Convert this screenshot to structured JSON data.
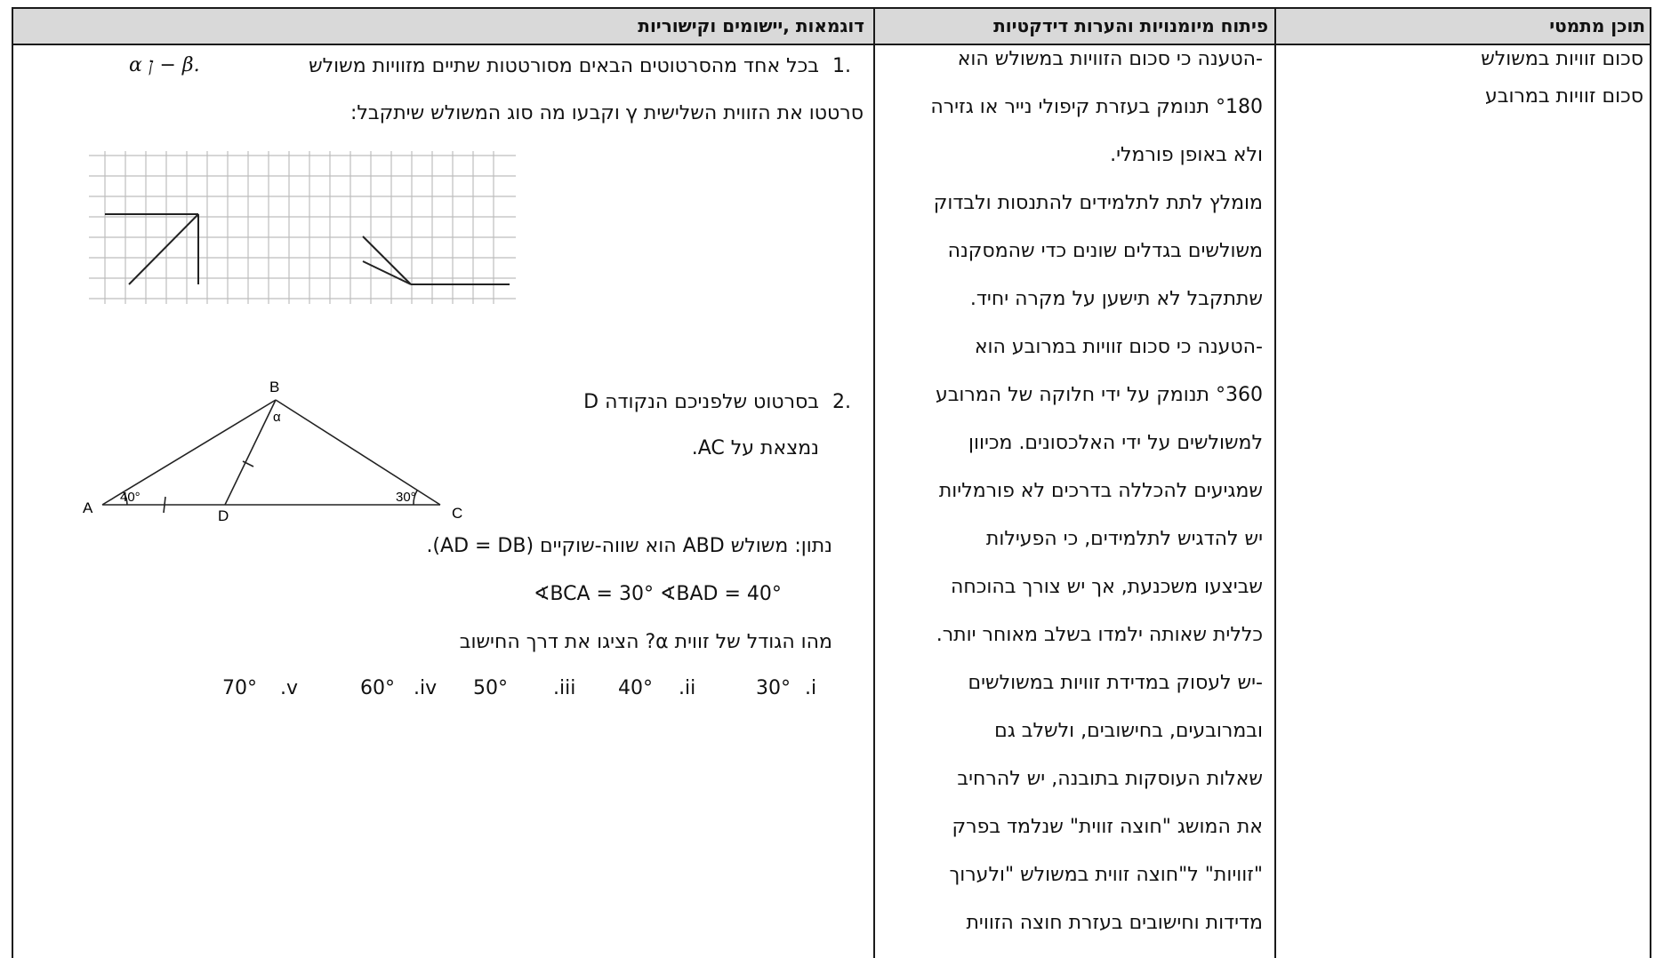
{
  "headers": {
    "content": "תוכן מתמטי",
    "skills": "פיתוח מיומנויות והערות דידקטיות",
    "examples": "דוגמאות ,יישומים וקישוריות"
  },
  "content_col": {
    "line1": "סכום זוויות במשולש",
    "line2": "סכום זוויות במרובע"
  },
  "skills_lines": [
    "-הטענה כי סכום הזוויות במשולש הוא",
    "°180 תנומק בעזרת קיפולי נייר או גזירה",
    "ולא באופן פורמלי.",
    "מומלץ לתת לתלמידים להתנסות ולבדוק",
    "משולשים בגדלים שונים כדי שהמסקנה",
    "שתתקבל לא תישען על מקרה יחיד.",
    "-הטענה כי סכום זוויות במרובע הוא",
    "°360 תנומק על ידי חלוקה של המרובע",
    "למשולשים על ידי האלכסונים. מכיוון",
    "שמגיעים להכללה בדרכים לא פורמליות",
    "יש להדגיש לתלמידים, כי הפעילות",
    "שביצעו משכנעת, אך יש צורך בהוכחה",
    "כללית שאותה ילמדו בשלב מאוחר יותר.",
    "-יש לעסוק במדידת זוויות במשולשים",
    "ובמרובעים, בחישובים, ולשלב גם",
    "שאלות העוסקות בתובנה, יש להרחיב",
    "את המושג \"חוצה זווית\" שנלמד בפרק",
    "\"זוויות\" ל\"חוצה זווית במשולש \"ולערוך",
    "מדידות וחישובים בעזרת חוצה הזווית"
  ],
  "ex1": {
    "num": ".1",
    "text": "בכל אחד מהסרטוטים הבאים מסורטטות שתיים מזוויות משולש",
    "greek": "α   ן − β.",
    "line2": "סרטטו את הזווית השלישית γ וקבעו מה סוג המשולש שיתקבל:"
  },
  "ex2": {
    "num": ".2",
    "line1": "בסרטוט שלפניכם הנקודה D",
    "line2": "נמצאת על AC.",
    "given": "נתון: משולש ABD הוא שווה-שוקיים (AD = DB).",
    "angles": "∢BCA = 30°        ∢BAD = 40°",
    "question": "מהו הגודל של זווית α? הציגו את דרך החישוב",
    "options": [
      {
        "label": ".i",
        "value": "30°"
      },
      {
        "label": ".ii",
        "value": "40°"
      },
      {
        "label": ".iii",
        "value": "50°"
      },
      {
        "label": ".iv",
        "value": "60°"
      },
      {
        "label": ".v",
        "value": "70°"
      }
    ]
  },
  "triangle": {
    "A": "A",
    "B": "B",
    "C": "C",
    "D": "D",
    "alpha": "α",
    "angleA": "40°",
    "angleC": "30°"
  }
}
